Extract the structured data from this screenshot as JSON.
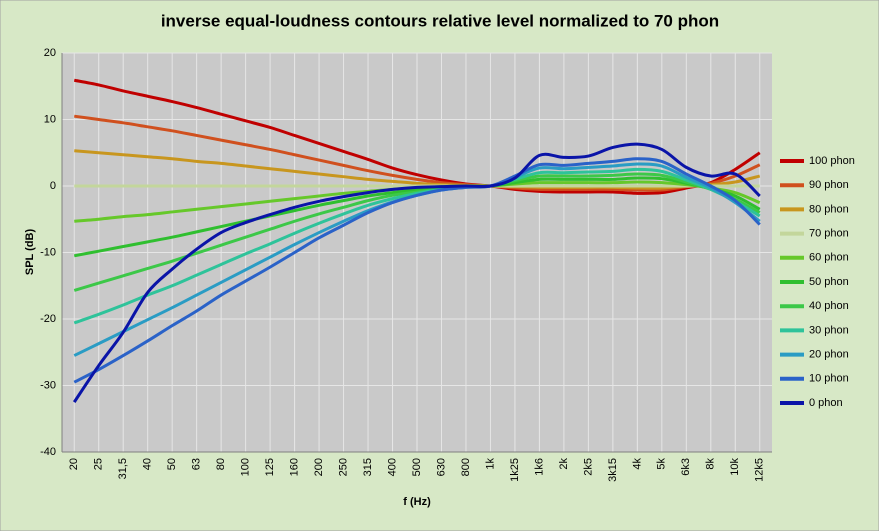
{
  "chart_data": {
    "type": "line",
    "title": "inverse equal-loudness  contours relative level normalized  to 70 phon",
    "xlabel": "f (Hz)",
    "ylabel": "SPL (dB)",
    "categories": [
      "20",
      "25",
      "31,5",
      "40",
      "50",
      "63",
      "80",
      "100",
      "125",
      "160",
      "200",
      "250",
      "315",
      "400",
      "500",
      "630",
      "800",
      "1k",
      "1k25",
      "1k6",
      "2k",
      "2k5",
      "3k15",
      "4k",
      "5k",
      "6k3",
      "8k",
      "10k",
      "12k5"
    ],
    "ylim": [
      -40,
      20
    ],
    "yticks": [
      -40,
      -30,
      -20,
      -10,
      0,
      10,
      20
    ],
    "grid": true,
    "legend": "right",
    "series": [
      {
        "name": "100 phon",
        "color": "#c00000",
        "values": [
          15.9,
          15.2,
          14.3,
          13.5,
          12.7,
          11.8,
          10.8,
          9.8,
          8.8,
          7.6,
          6.4,
          5.2,
          4.0,
          2.7,
          1.7,
          0.9,
          0.3,
          0,
          -0.5,
          -0.8,
          -0.9,
          -0.9,
          -0.9,
          -1.1,
          -1.0,
          -0.3,
          0.5,
          2.5,
          5.0
        ]
      },
      {
        "name": "90 phon",
        "color": "#d0501e",
        "values": [
          10.5,
          10.0,
          9.5,
          8.9,
          8.3,
          7.6,
          6.9,
          6.2,
          5.5,
          4.7,
          3.9,
          3.1,
          2.3,
          1.6,
          1.0,
          0.5,
          0.2,
          0,
          -0.3,
          -0.5,
          -0.5,
          -0.5,
          -0.5,
          -0.6,
          -0.6,
          -0.1,
          0.4,
          1.5,
          3.2
        ]
      },
      {
        "name": "80 phon",
        "color": "#c8961e",
        "values": [
          5.3,
          5.0,
          4.7,
          4.4,
          4.1,
          3.7,
          3.4,
          3.0,
          2.6,
          2.2,
          1.8,
          1.4,
          1.0,
          0.7,
          0.4,
          0.2,
          0.1,
          0,
          -0.1,
          -0.2,
          -0.2,
          -0.2,
          -0.2,
          -0.3,
          -0.3,
          0,
          0.2,
          0.6,
          1.5
        ]
      },
      {
        "name": "70 phon",
        "color": "#c3d69b",
        "values": [
          0,
          0,
          0,
          0,
          0,
          0,
          0,
          0,
          0,
          0,
          0,
          0,
          0,
          0,
          0,
          0,
          0,
          0,
          0,
          0,
          0,
          0,
          0,
          0,
          0,
          0,
          0,
          0,
          0
        ]
      },
      {
        "name": "60 phon",
        "color": "#66c82a",
        "values": [
          -5.3,
          -5,
          -4.6,
          -4.3,
          -3.9,
          -3.5,
          -3.1,
          -2.7,
          -2.3,
          -1.9,
          -1.5,
          -1.1,
          -0.8,
          -0.5,
          -0.3,
          -0.1,
          0,
          0,
          0.3,
          0.5,
          0.5,
          0.5,
          0.5,
          0.6,
          0.5,
          0.2,
          -0.3,
          -1.0,
          -2.5
        ]
      },
      {
        "name": "50 phon",
        "color": "#2fbf2f",
        "values": [
          -10.5,
          -9.8,
          -9.1,
          -8.4,
          -7.7,
          -6.9,
          -6.1,
          -5.3,
          -4.5,
          -3.7,
          -2.9,
          -2.2,
          -1.5,
          -1.0,
          -0.6,
          -0.3,
          -0.1,
          0,
          0.5,
          1.0,
          1.0,
          1.0,
          1.0,
          1.2,
          1.1,
          0.4,
          -0.4,
          -1.5,
          -3.5
        ]
      },
      {
        "name": "40 phon",
        "color": "#3cc848",
        "values": [
          -15.7,
          -14.6,
          -13.5,
          -12.4,
          -11.3,
          -10.1,
          -8.9,
          -7.7,
          -6.5,
          -5.3,
          -4.2,
          -3.2,
          -2.2,
          -1.4,
          -0.9,
          -0.4,
          -0.1,
          0,
          0.8,
          1.5,
          1.5,
          1.5,
          1.6,
          1.8,
          1.6,
          0.6,
          -0.5,
          -2.0,
          -4.0
        ]
      },
      {
        "name": "30 phon",
        "color": "#2ec39a",
        "values": [
          -20.6,
          -19.3,
          -17.9,
          -16.4,
          -15,
          -13.4,
          -11.8,
          -10.2,
          -8.7,
          -7.1,
          -5.6,
          -4.2,
          -2.9,
          -1.9,
          -1.1,
          -0.5,
          -0.1,
          0,
          1.0,
          2.0,
          2.0,
          2.1,
          2.2,
          2.5,
          2.2,
          0.9,
          -0.5,
          -2.3,
          -4.5
        ]
      },
      {
        "name": "20 phon",
        "color": "#2a9cc4",
        "values": [
          -25.5,
          -23.7,
          -21.9,
          -20.1,
          -18.3,
          -16.4,
          -14.5,
          -12.6,
          -10.7,
          -8.8,
          -7.0,
          -5.3,
          -3.7,
          -2.4,
          -1.4,
          -0.6,
          -0.2,
          0,
          1.3,
          2.7,
          2.6,
          2.8,
          3.0,
          3.3,
          3.0,
          1.3,
          -0.3,
          -2.5,
          -5.3
        ]
      },
      {
        "name": "10 phon",
        "color": "#2a62c8",
        "values": [
          -29.5,
          -27.6,
          -25.5,
          -23.3,
          -21.0,
          -18.8,
          -16.4,
          -14.3,
          -12.2,
          -10.0,
          -7.8,
          -5.9,
          -4.0,
          -2.5,
          -1.4,
          -0.6,
          -0.2,
          0,
          1.5,
          3.2,
          3.1,
          3.4,
          3.7,
          4.1,
          3.7,
          1.8,
          0,
          -2.2,
          -5.8
        ]
      },
      {
        "name": "0 phon",
        "color": "#0a14a8",
        "values": [
          -32.5,
          -27.0,
          -22.0,
          -16.0,
          -12.5,
          -9.5,
          -7.0,
          -5.5,
          -4.3,
          -3.2,
          -2.3,
          -1.6,
          -1.0,
          -0.5,
          -0.2,
          -0.1,
          0,
          0,
          1.2,
          4.6,
          4.3,
          4.5,
          5.8,
          6.3,
          5.5,
          2.8,
          1.5,
          1.8,
          -1.5
        ]
      }
    ]
  }
}
